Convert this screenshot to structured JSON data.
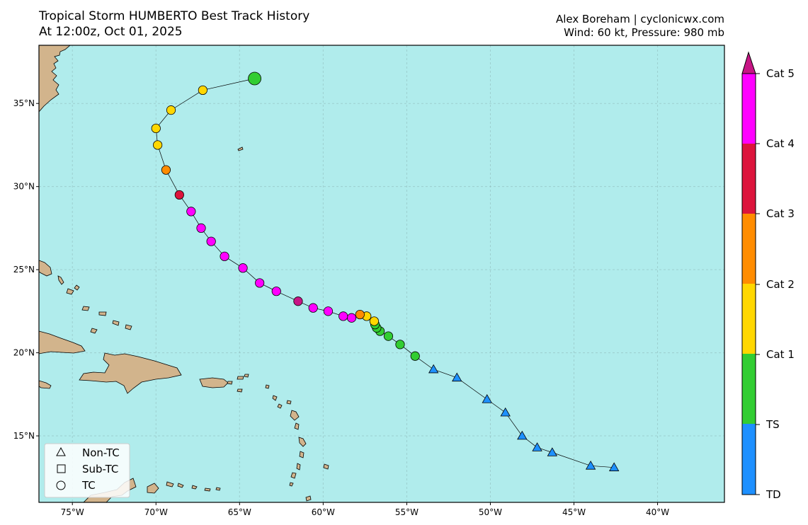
{
  "header": {
    "title_line1": "Tropical Storm HUMBERTO Best Track History",
    "title_line2": "At 12:00z, Oct 01, 2025",
    "credit_line1": "Alex Boreham | cyclonicwx.com",
    "credit_line2": "Wind: 60 kt, Pressure: 980 mb"
  },
  "colors": {
    "ocean": "#b0ecec",
    "land": "#d2b48c",
    "TD": "#1e90ff",
    "TS": "#32cd32",
    "Cat1": "#ffd700",
    "Cat2": "#ff8c00",
    "Cat3": "#dc143c",
    "Cat4": "#ff00ff",
    "Cat5": "#c71585"
  },
  "map": {
    "lon_range": [
      -77,
      -36
    ],
    "lat_range": [
      11,
      38.5
    ],
    "lon_ticks": [
      {
        "value": -75,
        "label": "75°W"
      },
      {
        "value": -70,
        "label": "70°W"
      },
      {
        "value": -65,
        "label": "65°W"
      },
      {
        "value": -60,
        "label": "60°W"
      },
      {
        "value": -55,
        "label": "55°W"
      },
      {
        "value": -50,
        "label": "50°W"
      },
      {
        "value": -45,
        "label": "45°W"
      },
      {
        "value": -40,
        "label": "40°W"
      }
    ],
    "lat_ticks": [
      {
        "value": 15,
        "label": "15°N"
      },
      {
        "value": 20,
        "label": "20°N"
      },
      {
        "value": 25,
        "label": "25°N"
      },
      {
        "value": 30,
        "label": "30°N"
      },
      {
        "value": 35,
        "label": "35°N"
      }
    ]
  },
  "colorbar": {
    "labels": [
      "TD",
      "TS",
      "Cat 1",
      "Cat 2",
      "Cat 3",
      "Cat 4",
      "Cat 5"
    ]
  },
  "legend": {
    "items": [
      {
        "label": "Non-TC",
        "symbol": "triangle"
      },
      {
        "label": "Sub-TC",
        "symbol": "square"
      },
      {
        "label": "TC",
        "symbol": "circle"
      }
    ]
  },
  "track": [
    {
      "lon": -42.6,
      "lat": 13.1,
      "cat": "TD",
      "type": "Non-TC"
    },
    {
      "lon": -44.0,
      "lat": 13.2,
      "cat": "TD",
      "type": "Non-TC"
    },
    {
      "lon": -46.3,
      "lat": 14.0,
      "cat": "TD",
      "type": "Non-TC"
    },
    {
      "lon": -47.2,
      "lat": 14.3,
      "cat": "TD",
      "type": "Non-TC"
    },
    {
      "lon": -48.1,
      "lat": 15.0,
      "cat": "TD",
      "type": "Non-TC"
    },
    {
      "lon": -49.1,
      "lat": 16.4,
      "cat": "TD",
      "type": "Non-TC"
    },
    {
      "lon": -50.2,
      "lat": 17.2,
      "cat": "TD",
      "type": "Non-TC"
    },
    {
      "lon": -52.0,
      "lat": 18.5,
      "cat": "TD",
      "type": "Non-TC"
    },
    {
      "lon": -53.4,
      "lat": 19.0,
      "cat": "TD",
      "type": "Non-TC"
    },
    {
      "lon": -54.5,
      "lat": 19.8,
      "cat": "TS",
      "type": "TC"
    },
    {
      "lon": -55.4,
      "lat": 20.5,
      "cat": "TS",
      "type": "TC"
    },
    {
      "lon": -56.1,
      "lat": 21.0,
      "cat": "TS",
      "type": "TC"
    },
    {
      "lon": -56.6,
      "lat": 21.3,
      "cat": "TS",
      "type": "TC"
    },
    {
      "lon": -56.8,
      "lat": 21.5,
      "cat": "TS",
      "type": "TC"
    },
    {
      "lon": -56.9,
      "lat": 21.7,
      "cat": "TS",
      "type": "TC"
    },
    {
      "lon": -56.95,
      "lat": 21.9,
      "cat": "Cat1",
      "type": "TC"
    },
    {
      "lon": -57.4,
      "lat": 22.2,
      "cat": "Cat1",
      "type": "TC"
    },
    {
      "lon": -57.8,
      "lat": 22.3,
      "cat": "Cat2",
      "type": "TC"
    },
    {
      "lon": -58.3,
      "lat": 22.1,
      "cat": "Cat4",
      "type": "TC"
    },
    {
      "lon": -58.8,
      "lat": 22.2,
      "cat": "Cat4",
      "type": "TC"
    },
    {
      "lon": -59.7,
      "lat": 22.5,
      "cat": "Cat4",
      "type": "TC"
    },
    {
      "lon": -60.6,
      "lat": 22.7,
      "cat": "Cat4",
      "type": "TC"
    },
    {
      "lon": -61.5,
      "lat": 23.1,
      "cat": "Cat5",
      "type": "TC"
    },
    {
      "lon": -62.8,
      "lat": 23.7,
      "cat": "Cat4",
      "type": "TC"
    },
    {
      "lon": -63.8,
      "lat": 24.2,
      "cat": "Cat4",
      "type": "TC"
    },
    {
      "lon": -64.8,
      "lat": 25.1,
      "cat": "Cat4",
      "type": "TC"
    },
    {
      "lon": -65.9,
      "lat": 25.8,
      "cat": "Cat4",
      "type": "TC"
    },
    {
      "lon": -66.7,
      "lat": 26.7,
      "cat": "Cat4",
      "type": "TC"
    },
    {
      "lon": -67.3,
      "lat": 27.5,
      "cat": "Cat4",
      "type": "TC"
    },
    {
      "lon": -67.9,
      "lat": 28.5,
      "cat": "Cat4",
      "type": "TC"
    },
    {
      "lon": -68.6,
      "lat": 29.5,
      "cat": "Cat3",
      "type": "TC"
    },
    {
      "lon": -69.4,
      "lat": 31.0,
      "cat": "Cat2",
      "type": "TC"
    },
    {
      "lon": -69.9,
      "lat": 32.5,
      "cat": "Cat1",
      "type": "TC"
    },
    {
      "lon": -70.0,
      "lat": 33.5,
      "cat": "Cat1",
      "type": "TC"
    },
    {
      "lon": -69.1,
      "lat": 34.6,
      "cat": "Cat1",
      "type": "TC"
    },
    {
      "lon": -67.2,
      "lat": 35.8,
      "cat": "Cat1",
      "type": "TC"
    },
    {
      "lon": -64.1,
      "lat": 36.5,
      "cat": "TS",
      "type": "TC",
      "current": true
    }
  ]
}
